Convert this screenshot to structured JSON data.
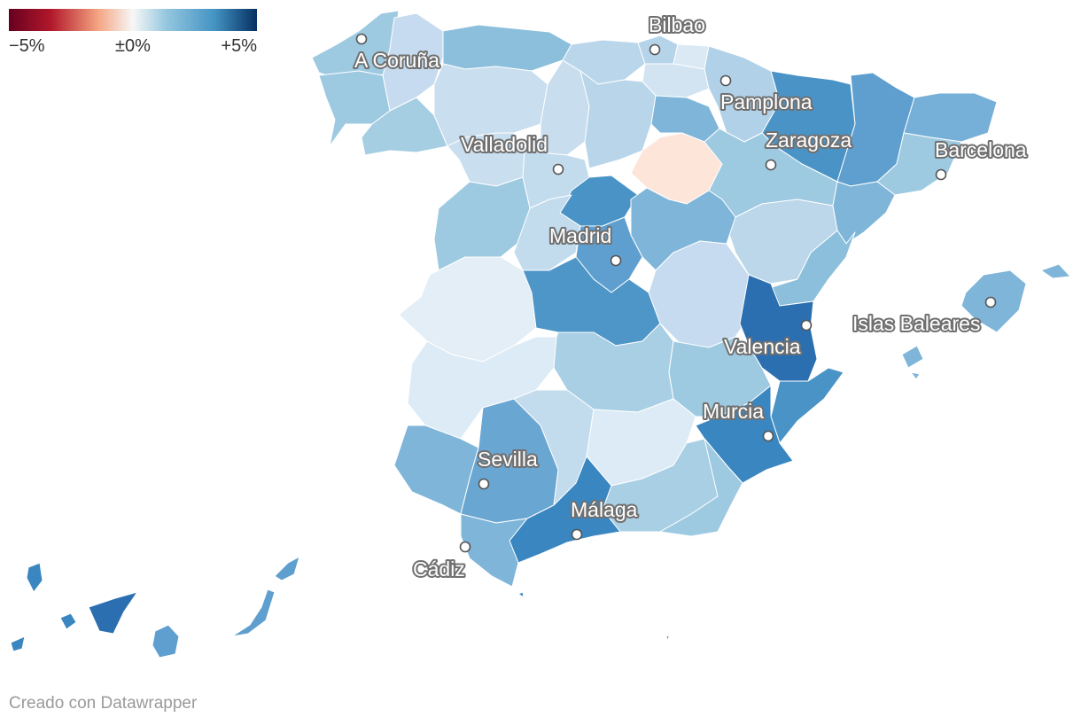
{
  "legend": {
    "min_label": "−5%",
    "mid_label": "±0%",
    "max_label": "+5%",
    "domain": [
      -5,
      5
    ],
    "gradient_colors": [
      "#67001f",
      "#b2182b",
      "#f4a582",
      "#f7f7f7",
      "#92c5de",
      "#4393c3",
      "#053061"
    ]
  },
  "cities": [
    {
      "name": "A Coruña"
    },
    {
      "name": "Bilbao"
    },
    {
      "name": "Pamplona"
    },
    {
      "name": "Zaragoza"
    },
    {
      "name": "Barcelona"
    },
    {
      "name": "Valladolid"
    },
    {
      "name": "Madrid"
    },
    {
      "name": "Islas Baleares"
    },
    {
      "name": "Valencia"
    },
    {
      "name": "Murcia"
    },
    {
      "name": "Sevilla"
    },
    {
      "name": "Málaga"
    },
    {
      "name": "Cádiz"
    }
  ],
  "credit": "Creado con Datawrapper"
}
